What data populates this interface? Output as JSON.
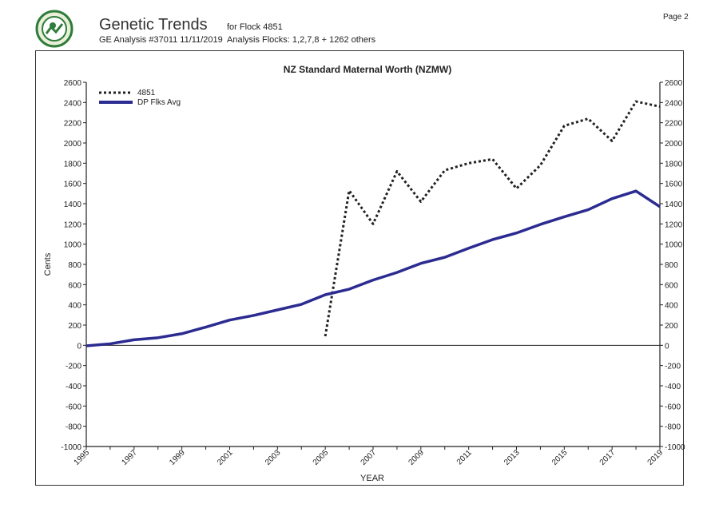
{
  "header": {
    "title": "Genetic Trends",
    "for_flock": "for Flock 4851",
    "analysis": "GE Analysis #37011 11/11/2019",
    "analysis_flocks": "Analysis Flocks: 1,2,7,8 + 1262 others",
    "page": "Page 2",
    "logo_icon": "sil-logo-icon"
  },
  "chart_data": {
    "type": "line",
    "title": "NZ Standard Maternal Worth  (NZMW)",
    "xlabel": "YEAR",
    "ylabel": "Cents",
    "xlim": [
      1995,
      2019
    ],
    "ylim": [
      -1000,
      2600
    ],
    "x_ticks": [
      "1995",
      "1997",
      "1999",
      "2001",
      "2003",
      "2005",
      "2007",
      "2009",
      "2011",
      "2013",
      "2015",
      "2017",
      "2019"
    ],
    "y_ticks": [
      "-1000",
      "-800",
      "-600",
      "-400",
      "-200",
      "0",
      "200",
      "400",
      "600",
      "800",
      "1000",
      "1200",
      "1400",
      "1600",
      "1800",
      "2000",
      "2200",
      "2400",
      "2600"
    ],
    "legend_position": "top-left",
    "grid": false,
    "series": [
      {
        "name": "4851",
        "color": "#222222",
        "style": "dotted",
        "x": [
          2005,
          2006,
          2007,
          2008,
          2009,
          2010,
          2011,
          2012,
          2013,
          2014,
          2015,
          2016,
          2017,
          2018,
          2019
        ],
        "values": [
          90,
          1530,
          1200,
          1720,
          1420,
          1730,
          1800,
          1840,
          1550,
          1780,
          2170,
          2240,
          2020,
          2410,
          2360
        ]
      },
      {
        "name": "DP Flks Avg",
        "color": "#2b2b91",
        "style": "solid",
        "x": [
          1995,
          1996,
          1997,
          1998,
          1999,
          2000,
          2001,
          2002,
          2003,
          2004,
          2005,
          2006,
          2007,
          2008,
          2009,
          2010,
          2011,
          2012,
          2013,
          2014,
          2015,
          2016,
          2017,
          2018,
          2019
        ],
        "values": [
          -5,
          15,
          55,
          75,
          115,
          180,
          250,
          295,
          350,
          405,
          500,
          555,
          645,
          720,
          810,
          870,
          960,
          1045,
          1110,
          1195,
          1270,
          1340,
          1450,
          1525,
          1370
        ]
      }
    ]
  }
}
